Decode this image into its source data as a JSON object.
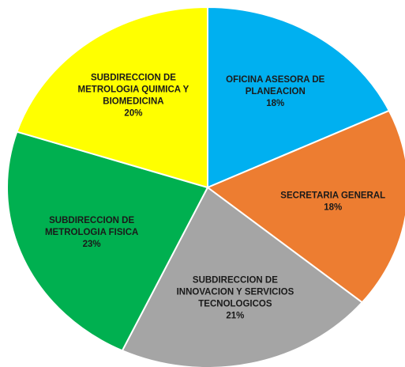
{
  "chart_data": {
    "type": "pie",
    "categories": [
      [
        "OFICINA ASESORA DE",
        "PLANEACION"
      ],
      [
        "SECRETARIA GENERAL"
      ],
      [
        "SUBDIRECCION DE",
        "INNOVACION Y SERVICIOS",
        "TECNOLOGICOS"
      ],
      [
        "SUBDIRECCION DE",
        "METROLOGIA FISICA"
      ],
      [
        "SUBDIRECCION DE",
        "METROLOGIA QUIMICA Y",
        "BIOMEDICINA"
      ]
    ],
    "values": [
      18,
      18,
      21,
      23,
      20
    ],
    "value_labels": [
      "18%",
      "18%",
      "21%",
      "23%",
      "20%"
    ],
    "colors": [
      "#00B0F0",
      "#ED7D31",
      "#A5A5A5",
      "#00B050",
      "#FFFF00"
    ]
  }
}
